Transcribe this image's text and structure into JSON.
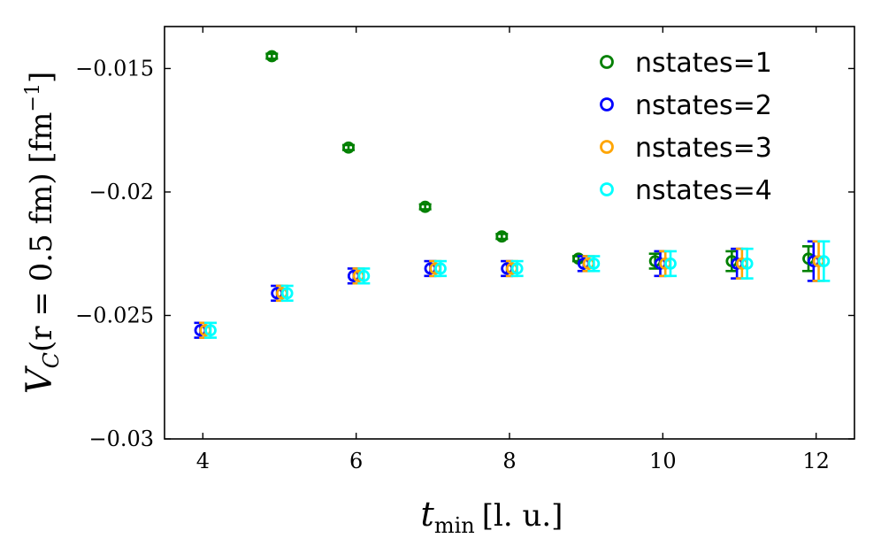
{
  "chart_data": {
    "type": "scatter",
    "xlabel": {
      "main": "t",
      "sub": "min",
      "unit": "[l. u.]"
    },
    "ylabel": {
      "main": "V",
      "sub": "C",
      "expr": "(r = 0.5 fm) [fm",
      "sup": "−1",
      "close": "]"
    },
    "xlim": [
      3.5,
      12.5
    ],
    "ylim": [
      -0.03,
      -0.0133
    ],
    "xticks": [
      4,
      6,
      8,
      10,
      12
    ],
    "yticks": [
      -0.015,
      -0.02,
      -0.025,
      -0.03
    ],
    "xtick_labels": [
      "4",
      "6",
      "8",
      "10",
      "12"
    ],
    "ytick_labels": [
      "−0.015",
      "−0.02",
      "−0.025",
      "−0.03"
    ],
    "grid": false,
    "legend_position": "top-right",
    "marker": "open-circle",
    "series": [
      {
        "name": "nstates=1",
        "color": "#008000",
        "x": [
          5,
          6,
          7,
          8,
          9,
          10,
          11,
          12
        ],
        "y": [
          -0.0145,
          -0.0182,
          -0.0206,
          -0.0218,
          -0.0227,
          -0.0228,
          -0.0228,
          -0.0227
        ],
        "err": [
          0.0001,
          0.0001,
          0.0001,
          0.0001,
          0.0001,
          0.0003,
          0.0004,
          0.0005
        ]
      },
      {
        "name": "nstates=2",
        "color": "#0000ff",
        "x": [
          4,
          5,
          6,
          7,
          8,
          9,
          10,
          11,
          12
        ],
        "y": [
          -0.0256,
          -0.0241,
          -0.0234,
          -0.0231,
          -0.0231,
          -0.0229,
          -0.0229,
          -0.0229,
          -0.0228
        ],
        "err": [
          0.0003,
          0.0003,
          0.0003,
          0.0003,
          0.0003,
          0.0003,
          0.0005,
          0.0006,
          0.0008
        ]
      },
      {
        "name": "nstates=3",
        "color": "#ffa500",
        "x": [
          4,
          5,
          6,
          7,
          8,
          9,
          10,
          11,
          12
        ],
        "y": [
          -0.0256,
          -0.0241,
          -0.0234,
          -0.0231,
          -0.0231,
          -0.0229,
          -0.0229,
          -0.0229,
          -0.0228
        ],
        "err": [
          0.0003,
          0.0003,
          0.0003,
          0.0003,
          0.0003,
          0.0003,
          0.0005,
          0.0006,
          0.0008
        ]
      },
      {
        "name": "nstates=4",
        "color": "#00ffff",
        "x": [
          4,
          5,
          6,
          7,
          8,
          9,
          10,
          11,
          12
        ],
        "y": [
          -0.0256,
          -0.0241,
          -0.0234,
          -0.0231,
          -0.0231,
          -0.0229,
          -0.0229,
          -0.0229,
          -0.0228
        ],
        "err": [
          0.0003,
          0.0003,
          0.0003,
          0.0003,
          0.0003,
          0.0003,
          0.0005,
          0.0006,
          0.0008
        ]
      }
    ]
  }
}
